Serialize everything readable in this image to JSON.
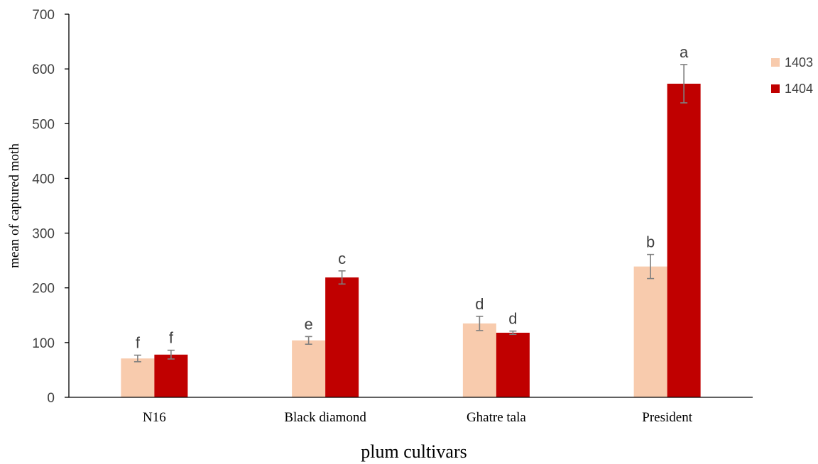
{
  "chart_data": {
    "type": "bar",
    "categories": [
      "N16",
      "Black diamond",
      "Ghatre tala",
      "President"
    ],
    "series": [
      {
        "name": "1403",
        "color": "#F8CBAD",
        "values": [
          71,
          104,
          135,
          239
        ],
        "errors": [
          6,
          7,
          13,
          22
        ],
        "labels": [
          "f",
          "e",
          "d",
          "b"
        ]
      },
      {
        "name": "1404",
        "color": "#C00000",
        "values": [
          78,
          219,
          118,
          573
        ],
        "errors": [
          8,
          12,
          3,
          35
        ],
        "labels": [
          "f",
          "c",
          "d",
          "a"
        ]
      }
    ],
    "xlabel": "plum cultivars",
    "ylabel": "mean of captured moth",
    "ylim": [
      0,
      700
    ],
    "yticks": [
      0,
      100,
      200,
      300,
      400,
      500,
      600,
      700
    ],
    "grid": false,
    "legend_position": "right"
  }
}
